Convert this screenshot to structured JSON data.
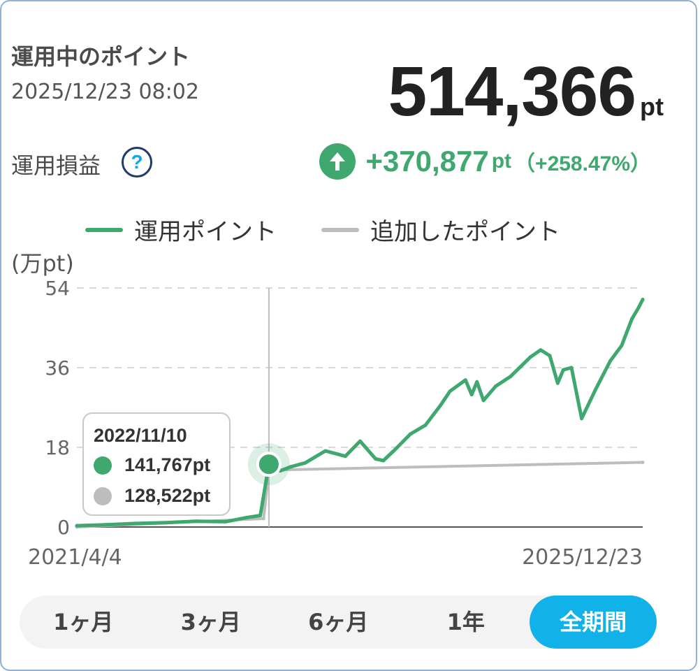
{
  "header": {
    "title": "運用中のポイント",
    "datetime": "2025/12/23 08:02",
    "total_value": "514,366",
    "total_unit": "pt"
  },
  "profit": {
    "label": "運用損益",
    "help": "?",
    "value": "+370,877",
    "unit": "pt",
    "percent": "（+258.47%）"
  },
  "colors": {
    "green": "#3fa86e",
    "gray": "#bdbdbd",
    "accent": "#11b1ea"
  },
  "tooltip": {
    "date": "2022/11/10",
    "value1": "141,767pt",
    "value2": "128,522pt"
  },
  "tabs": [
    {
      "label": "1ヶ月",
      "active": false
    },
    {
      "label": "3ヶ月",
      "active": false
    },
    {
      "label": "6ヶ月",
      "active": false
    },
    {
      "label": "1年",
      "active": false
    },
    {
      "label": "全期間",
      "active": true
    }
  ],
  "chart_data": {
    "type": "line",
    "ylabel": "(万pt)",
    "ylim": [
      0,
      54
    ],
    "yticks": [
      "54",
      "36",
      "18",
      "0"
    ],
    "xlabels": [
      "2021/4/4",
      "2025/12/23"
    ],
    "grid": true,
    "legend_position": "top",
    "series": [
      {
        "name": "運用ポイント",
        "x": [
          "2021-04-04",
          "2021-07-01",
          "2021-10-01",
          "2022-01-01",
          "2022-04-01",
          "2022-07-01",
          "2022-09-01",
          "2022-10-15",
          "2022-11-10",
          "2022-12-15",
          "2023-01-15",
          "2023-03-01",
          "2023-05-01",
          "2023-07-01",
          "2023-08-15",
          "2023-10-01",
          "2023-10-25",
          "2023-12-01",
          "2024-01-15",
          "2024-03-01",
          "2024-04-15",
          "2024-05-15",
          "2024-07-01",
          "2024-07-20",
          "2024-08-05",
          "2024-08-25",
          "2024-10-01",
          "2024-11-15",
          "2024-12-10",
          "2025-01-15",
          "2025-02-15",
          "2025-03-15",
          "2025-04-08",
          "2025-04-25",
          "2025-05-20",
          "2025-06-20",
          "2025-08-01",
          "2025-09-15",
          "2025-10-20",
          "2025-11-20",
          "2025-12-10",
          "2025-12-23"
        ],
        "y": [
          0.3,
          0.5,
          0.8,
          1.0,
          1.3,
          1.2,
          2.1,
          2.6,
          14.18,
          12.7,
          13.6,
          14.5,
          17.2,
          16.0,
          19.4,
          15.4,
          15.0,
          17.6,
          21.0,
          23.0,
          27.4,
          30.7,
          33.2,
          29.9,
          32.8,
          28.6,
          31.8,
          34.0,
          35.8,
          38.4,
          40.0,
          38.7,
          32.5,
          35.5,
          36.0,
          24.5,
          31.0,
          37.5,
          41.0,
          47.0,
          49.5,
          51.4
        ]
      },
      {
        "name": "追加したポイント",
        "x": [
          "2021-04-04",
          "2022-10-25",
          "2022-11-10",
          "2025-12-23"
        ],
        "y": [
          0.0,
          1.9,
          12.85,
          14.6
        ]
      }
    ],
    "highlight": {
      "x": "2022-11-10",
      "y1": 14.18,
      "y2": 12.85
    }
  }
}
